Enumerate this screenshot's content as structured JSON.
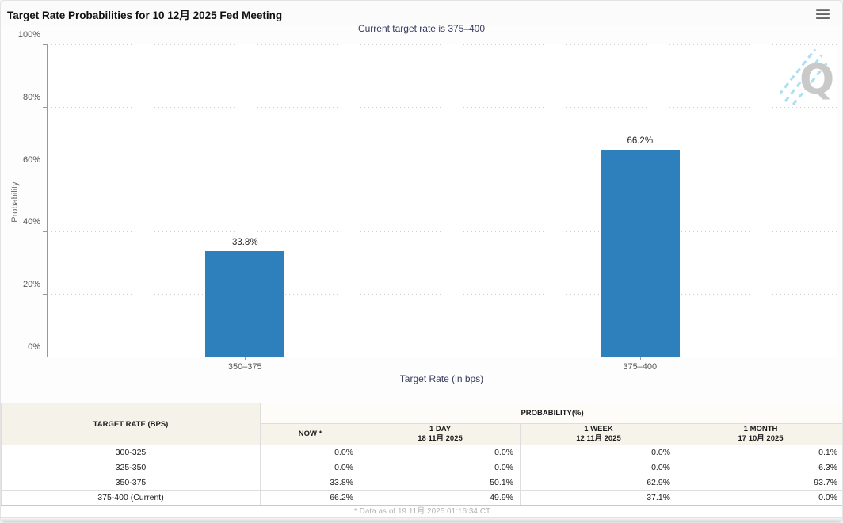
{
  "header": {
    "title": "Target Rate Probabilities for 10 12月 2025 Fed Meeting",
    "subtitle": "Current target rate is 375–400"
  },
  "chart_data": {
    "type": "bar",
    "categories": [
      "350–375",
      "375–400"
    ],
    "values": [
      33.8,
      66.2
    ],
    "value_labels": [
      "33.8%",
      "66.2%"
    ],
    "title": "Target Rate Probabilities for 10 12月 2025 Fed Meeting",
    "xlabel": "Target Rate (in bps)",
    "ylabel": "Probability",
    "ylim": [
      0,
      100
    ],
    "yticks": [
      0,
      20,
      40,
      60,
      80,
      100
    ],
    "ytick_labels": [
      "0%",
      "20%",
      "40%",
      "60%",
      "80%",
      "100%"
    ],
    "grid": "horizontal-dotted",
    "legend": "none",
    "bar_color": "#2d80bc"
  },
  "watermark": {
    "letter": "Q"
  },
  "table": {
    "headers": {
      "target_rate": "TARGET RATE (BPS)",
      "group": "PROBABILITY(%)",
      "now": "NOW *",
      "day_label": "1 DAY",
      "day_date": "18 11月 2025",
      "week_label": "1 WEEK",
      "week_date": "12 11月 2025",
      "month_label": "1 MONTH",
      "month_date": "17 10月 2025"
    },
    "rows": [
      {
        "rate": "300-325",
        "now": "0.0%",
        "day": "0.0%",
        "week": "0.0%",
        "month": "0.1%"
      },
      {
        "rate": "325-350",
        "now": "0.0%",
        "day": "0.0%",
        "week": "0.0%",
        "month": "6.3%"
      },
      {
        "rate": "350-375",
        "now": "33.8%",
        "day": "50.1%",
        "week": "62.9%",
        "month": "93.7%"
      },
      {
        "rate": "375-400 (Current)",
        "now": "66.2%",
        "day": "49.9%",
        "week": "37.1%",
        "month": "0.0%"
      }
    ],
    "footnote": "* Data as of 19 11月 2025 01:16:34 CT"
  },
  "colors": {
    "bar": "#2d80bc",
    "now_column_bg": "#fafad7",
    "header_bg": "#f5f2e9",
    "subtitle_text": "#363a5e",
    "footnote_text": "#b3b3b3"
  }
}
